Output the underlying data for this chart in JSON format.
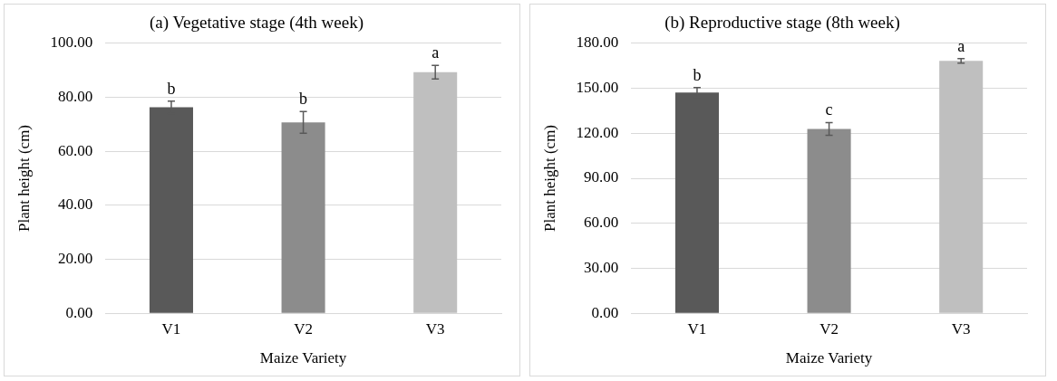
{
  "chart_data": [
    {
      "type": "bar",
      "title": "(a) Vegetative stage (4th week)",
      "xlabel": "Maize Variety",
      "ylabel": "Plant height (cm)",
      "categories": [
        "V1",
        "V2",
        "V3"
      ],
      "series": [
        {
          "values": [
            76.3,
            70.7,
            89.3
          ],
          "colors": [
            "#595959",
            "#8c8c8c",
            "#bfbfbf"
          ],
          "errors": [
            2.3,
            4.0,
            2.5
          ]
        }
      ],
      "ylim": [
        0,
        100
      ],
      "yticks": [
        {
          "value": 0,
          "label": "0.00"
        },
        {
          "value": 20,
          "label": "20.00"
        },
        {
          "value": 40,
          "label": "40.00"
        },
        {
          "value": 60,
          "label": "60.00"
        },
        {
          "value": 80,
          "label": "80.00"
        },
        {
          "value": 100,
          "label": "100.00"
        }
      ],
      "grid": "y",
      "legend": false,
      "annotations": [
        "b",
        "b",
        "a"
      ]
    },
    {
      "type": "bar",
      "title": "(b) Reproductive stage (8th week)",
      "xlabel": "Maize Variety",
      "ylabel": "Plant height (cm)",
      "categories": [
        "V1",
        "V2",
        "V3"
      ],
      "series": [
        {
          "values": [
            147.1,
            122.9,
            168.3
          ],
          "colors": [
            "#595959",
            "#8c8c8c",
            "#bfbfbf"
          ],
          "errors": [
            3.3,
            4.2,
            1.5
          ]
        }
      ],
      "ylim": [
        0,
        180
      ],
      "yticks": [
        {
          "value": 0,
          "label": "0.00"
        },
        {
          "value": 30,
          "label": "30.00"
        },
        {
          "value": 60,
          "label": "60.00"
        },
        {
          "value": 90,
          "label": "90.00"
        },
        {
          "value": 120,
          "label": "120.00"
        },
        {
          "value": 150,
          "label": "150.00"
        },
        {
          "value": 180,
          "label": "180.00"
        }
      ],
      "grid": "y",
      "legend": false,
      "annotations": [
        "b",
        "c",
        "a"
      ]
    }
  ]
}
